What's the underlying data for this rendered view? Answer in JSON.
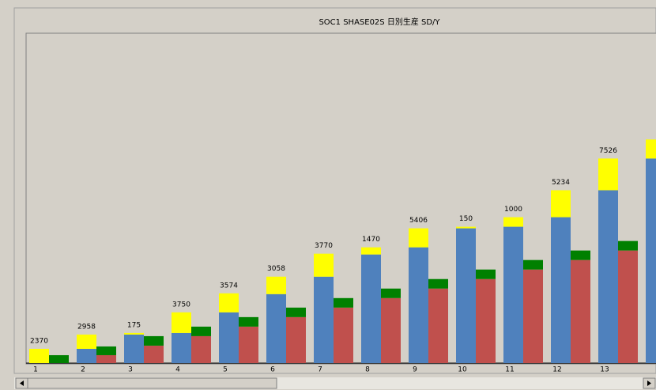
{
  "chart_data": {
    "type": "stacked_bar",
    "title": "SOC1  SHASE02S  日別生産  SD/Y",
    "categories": [
      "1",
      "2",
      "3",
      "4",
      "5",
      "6",
      "7",
      "8",
      "9",
      "10",
      "11",
      "12",
      "13",
      null
    ],
    "top_labels": [
      "2370",
      "2958",
      "175",
      "3750",
      "3574",
      "3058",
      "3770",
      "1470",
      "5406",
      "150",
      "1000",
      "5234",
      "7526",
      null
    ],
    "ylim": [
      0,
      416
    ],
    "series": [
      {
        "color": "#4f81bd",
        "stack": "a",
        "values": [
          0,
          18,
          36,
          38,
          64,
          87,
          109,
          137,
          146,
          170,
          172,
          184,
          218,
          258
        ]
      },
      {
        "color": "#ffff00",
        "stack": "a",
        "values": [
          18,
          18,
          2,
          26,
          24,
          22,
          29,
          9,
          24,
          2,
          12,
          34,
          40,
          24
        ]
      },
      {
        "color": "#c0504d",
        "stack": "b",
        "values": [
          0,
          10,
          22,
          34,
          46,
          58,
          70,
          82,
          94,
          106,
          118,
          130,
          142,
          null
        ]
      },
      {
        "color": "#008000",
        "stack": "b",
        "values": [
          10,
          11,
          12,
          12,
          12,
          12,
          12,
          12,
          12,
          12,
          12,
          12,
          12,
          null
        ]
      }
    ]
  }
}
